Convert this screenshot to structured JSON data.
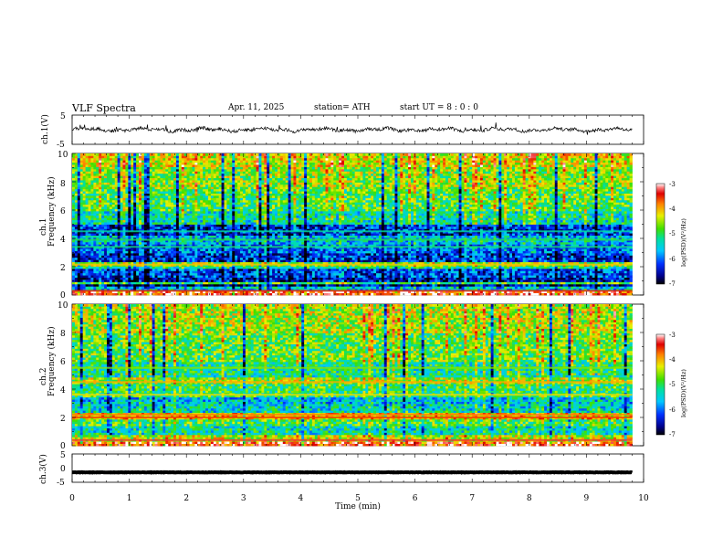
{
  "header": {
    "title": "VLF  Spectra",
    "date": "Apr. 11, 2025",
    "station": "station= ATH",
    "start": "start  UT  =   8  : 0  : 0"
  },
  "chart_data": [
    {
      "type": "line",
      "name": "ch1-waveform",
      "ylabel": "ch.1(V)",
      "ylim": [
        -5,
        5
      ],
      "yticks": [
        "5",
        "-5"
      ],
      "xlim": [
        0,
        10
      ],
      "baseline": 0
    },
    {
      "type": "heatmap",
      "name": "ch1-spectrogram",
      "ylabel": "ch.1",
      "ylabel2": "Frequency  (kHz)",
      "ylim": [
        0,
        10
      ],
      "yticks": [
        "0",
        "2",
        "4",
        "6",
        "8",
        "10"
      ],
      "xlim": [
        0,
        9.8
      ],
      "colorbar": {
        "label": "log(PSD)(V²/Hz)",
        "ticks": [
          "-3",
          "-4",
          "-5",
          "-6",
          "-7"
        ],
        "range": [
          -7,
          -3
        ]
      },
      "bands": [
        {
          "from": 0,
          "to": 0.25,
          "level": -3.4
        },
        {
          "from": 0.25,
          "to": 0.55,
          "level": -5.6
        },
        {
          "from": 0.55,
          "to": 0.8,
          "level": -6.6
        },
        {
          "from": 0.8,
          "to": 1.0,
          "level": -4.8
        },
        {
          "from": 1.0,
          "to": 1.3,
          "level": -6.5
        },
        {
          "from": 1.3,
          "to": 1.8,
          "level": -6.2
        },
        {
          "from": 1.8,
          "to": 2.0,
          "level": -5.2
        },
        {
          "from": 2.0,
          "to": 2.3,
          "level": -4.6
        },
        {
          "from": 2.3,
          "to": 2.9,
          "level": -6.3
        },
        {
          "from": 2.9,
          "to": 3.6,
          "level": -6.0
        },
        {
          "from": 3.6,
          "to": 4.2,
          "level": -5.6
        },
        {
          "from": 4.2,
          "to": 5.0,
          "level": -6.3
        },
        {
          "from": 5.0,
          "to": 6.0,
          "level": -5.3
        },
        {
          "from": 6.0,
          "to": 7.5,
          "level": -4.9
        },
        {
          "from": 7.5,
          "to": 9.0,
          "level": -4.6
        },
        {
          "from": 9.0,
          "to": 10.0,
          "level": -4.3
        }
      ],
      "lines": [
        {
          "freq": 0.3,
          "level": -3.5
        },
        {
          "freq": 2.15,
          "level": -4.1
        },
        {
          "freq": 3.4,
          "level": -5.1
        },
        {
          "freq": 3.9,
          "level": -5.0
        },
        {
          "freq": 4.5,
          "level": -5.2
        }
      ]
    },
    {
      "type": "heatmap",
      "name": "ch2-spectrogram",
      "ylabel": "ch.2",
      "ylabel2": "Frequency  (kHz)",
      "ylim": [
        0,
        10
      ],
      "yticks": [
        "0",
        "2",
        "4",
        "6",
        "8",
        "10"
      ],
      "xlim": [
        0,
        9.8
      ],
      "colorbar": {
        "label": "log(PSD)(V²/Hz)",
        "ticks": [
          "-3",
          "-4",
          "-5",
          "-6",
          "-7"
        ],
        "range": [
          -7,
          -3
        ]
      },
      "bands": [
        {
          "from": 0,
          "to": 0.3,
          "level": -3.5
        },
        {
          "from": 0.3,
          "to": 0.8,
          "level": -4.4
        },
        {
          "from": 0.8,
          "to": 1.4,
          "level": -5.3
        },
        {
          "from": 1.4,
          "to": 1.8,
          "level": -4.9
        },
        {
          "from": 1.8,
          "to": 2.3,
          "level": -4.1
        },
        {
          "from": 2.3,
          "to": 2.9,
          "level": -5.4
        },
        {
          "from": 2.9,
          "to": 3.5,
          "level": -5.6
        },
        {
          "from": 3.5,
          "to": 4.3,
          "level": -5.0
        },
        {
          "from": 4.3,
          "to": 4.8,
          "level": -4.5
        },
        {
          "from": 4.8,
          "to": 6.0,
          "level": -5.2
        },
        {
          "from": 6.0,
          "to": 8.0,
          "level": -4.8
        },
        {
          "from": 8.0,
          "to": 10.0,
          "level": -4.5
        }
      ],
      "lines": [
        {
          "freq": 0.4,
          "level": -3.3
        },
        {
          "freq": 2.0,
          "level": -3.6
        },
        {
          "freq": 2.2,
          "level": -3.8
        },
        {
          "freq": 3.6,
          "level": -4.2
        },
        {
          "freq": 4.5,
          "level": -4.0
        },
        {
          "freq": 5.5,
          "level": -4.6
        }
      ]
    },
    {
      "type": "line",
      "name": "ch3-waveform",
      "ylabel": "ch.3(V)",
      "ylim": [
        -5,
        5
      ],
      "yticks": [
        "5",
        "0",
        "-5"
      ],
      "xlim": [
        0,
        10
      ],
      "baseline": -1.5,
      "xlabel": "Time  (min)",
      "xticks": [
        "0",
        "1",
        "2",
        "3",
        "4",
        "5",
        "6",
        "7",
        "8",
        "9",
        "10"
      ]
    }
  ]
}
